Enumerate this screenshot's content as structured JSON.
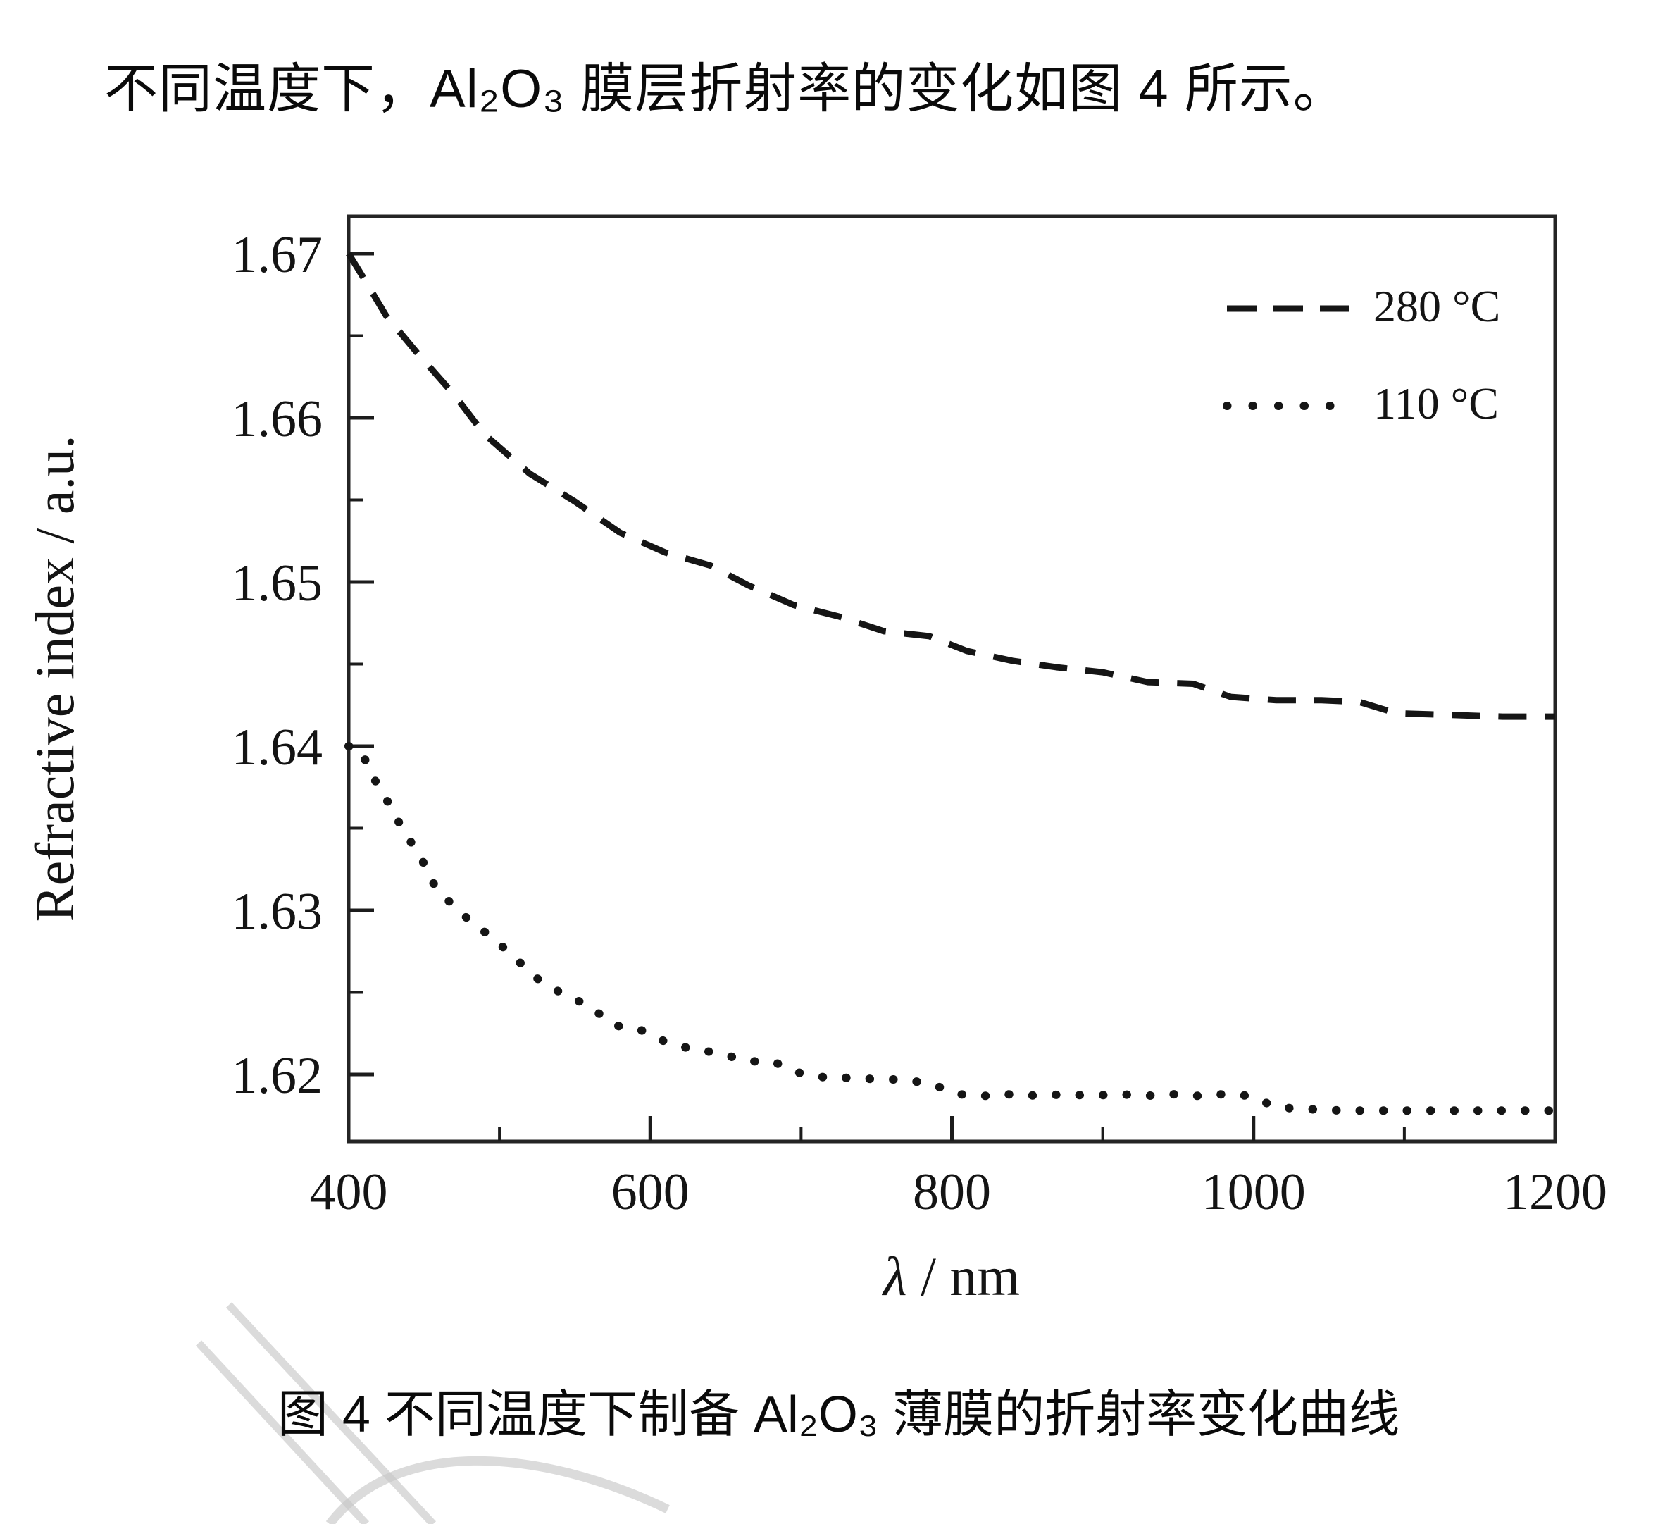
{
  "page": {
    "background": "#ffffff",
    "ink": "#141414"
  },
  "heading": {
    "text": "不同温度下，Al₂O₃ 膜层折射率的变化如图 4 所示。"
  },
  "caption": {
    "text": "图 4 不同温度下制备 Al₂O₃ 薄膜的折射率变化曲线"
  },
  "chart_data": {
    "type": "line",
    "title": "",
    "xlabel": "λ / nm",
    "xlabel_parts": {
      "symbol": "λ",
      "rest": " / nm"
    },
    "ylabel": "Refractive index / a.u.",
    "xlim": [
      400,
      1200
    ],
    "ylim": [
      1.616,
      1.6723
    ],
    "x_ticks_major": [
      400,
      600,
      800,
      1000,
      1200
    ],
    "x_ticks_minor": [
      500,
      700,
      900,
      1100
    ],
    "y_ticks_major": [
      1.62,
      1.63,
      1.64,
      1.65,
      1.66,
      1.67
    ],
    "y_ticks_minor": [
      1.625,
      1.635,
      1.645,
      1.655,
      1.665
    ],
    "grid": false,
    "legend_position": "top-right",
    "line_color": "#151515",
    "series": [
      {
        "name": "280 °C",
        "style": "dashed",
        "color": "#151515",
        "x": [
          400,
          410,
          425,
          445,
          470,
          490,
          520,
          550,
          580,
          610,
          640,
          665,
          695,
          725,
          755,
          785,
          810,
          840,
          870,
          900,
          930,
          960,
          985,
          1015,
          1045,
          1070,
          1095,
          1130,
          1165,
          1200
        ],
        "y": [
          1.67,
          1.6685,
          1.6662,
          1.664,
          1.6614,
          1.659,
          1.6566,
          1.6549,
          1.653,
          1.6518,
          1.651,
          1.6498,
          1.6486,
          1.6479,
          1.647,
          1.6467,
          1.6458,
          1.6452,
          1.6448,
          1.6445,
          1.6439,
          1.6438,
          1.643,
          1.6428,
          1.6428,
          1.6427,
          1.642,
          1.6419,
          1.6418,
          1.6418
        ]
      },
      {
        "name": "110 °C",
        "style": "dotted",
        "color": "#151515",
        "x": [
          400,
          408,
          415,
          426,
          436,
          448,
          457,
          472,
          490,
          507,
          524,
          542,
          559,
          576,
          594,
          612,
          630,
          646,
          664,
          681,
          699,
          717,
          734,
          752,
          768,
          787,
          804,
          822,
          840,
          858,
          876,
          892,
          911,
          929,
          946,
          963,
          980,
          998,
          1015,
          1033,
          1060,
          1100,
          1150,
          1200
        ],
        "y": [
          1.64,
          1.6398,
          1.6383,
          1.6366,
          1.6349,
          1.6332,
          1.6315,
          1.63,
          1.6287,
          1.6274,
          1.6259,
          1.6249,
          1.6242,
          1.623,
          1.6227,
          1.6219,
          1.6215,
          1.6213,
          1.6208,
          1.6208,
          1.6201,
          1.6198,
          1.6198,
          1.6197,
          1.6197,
          1.6194,
          1.6188,
          1.6187,
          1.6188,
          1.6187,
          1.6188,
          1.6187,
          1.6188,
          1.6187,
          1.6188,
          1.6187,
          1.6188,
          1.6187,
          1.618,
          1.6179,
          1.6178,
          1.6178,
          1.6178,
          1.6178
        ]
      }
    ]
  }
}
